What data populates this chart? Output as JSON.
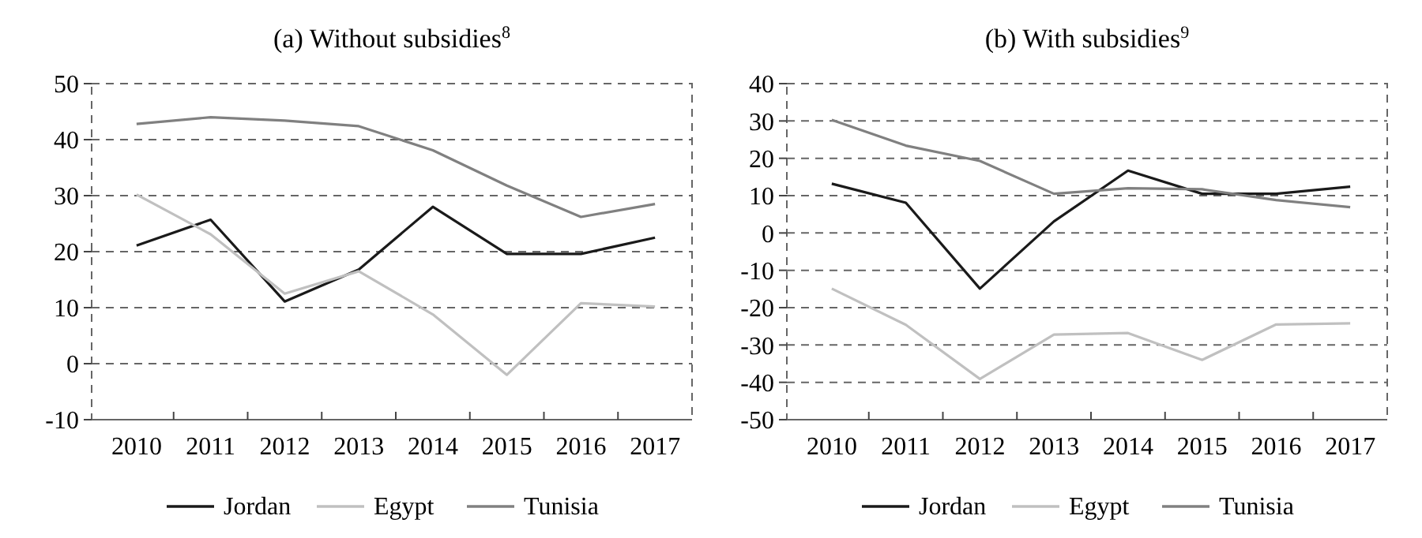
{
  "chart_data": [
    {
      "type": "line",
      "title": "(a) Without subsidies$^{8}$",
      "categories": [
        "2010",
        "2011",
        "2012",
        "2013",
        "2014",
        "2015",
        "2016",
        "2017"
      ],
      "ylim": [
        -10,
        50
      ],
      "yticks": [
        -10,
        0,
        10,
        20,
        30,
        40,
        50
      ],
      "grid": "y",
      "legend": "bottom",
      "marker": "none",
      "line_style": "solid",
      "series": [
        {
          "name": "Jordan",
          "color": "#1a1a1a",
          "values": [
            21.1,
            25.7,
            11.1,
            16.8,
            28,
            19.6,
            19.6,
            22.5
          ]
        },
        {
          "name": "Egypt",
          "color": "#c0c0c0",
          "values": [
            30.2,
            23.1,
            12.5,
            16.5,
            8.8,
            -2,
            10.8,
            10.2
          ]
        },
        {
          "name": "Tunisia",
          "color": "#808080",
          "values": [
            42.8,
            44,
            43.4,
            42.4,
            38.1,
            31.8,
            26.2,
            28.5
          ]
        }
      ]
    },
    {
      "type": "line",
      "title": "(b) With subsidies$^{9}$",
      "categories": [
        "2010",
        "2011",
        "2012",
        "2013",
        "2014",
        "2015",
        "2016",
        "2017"
      ],
      "ylim": [
        -50,
        40
      ],
      "yticks": [
        -50,
        -40,
        -30,
        -20,
        -10,
        0,
        10,
        20,
        30,
        40
      ],
      "grid": "y",
      "legend": "bottom",
      "marker": "none",
      "line_style": "solid",
      "series": [
        {
          "name": "Jordan",
          "color": "#1a1a1a",
          "values": [
            13.2,
            8.1,
            -14.9,
            3.1,
            16.7,
            10.5,
            10.5,
            12.4
          ]
        },
        {
          "name": "Egypt",
          "color": "#c0c0c0",
          "values": [
            -14.9,
            -24.6,
            -39.1,
            -27.2,
            -26.8,
            -34,
            -24.5,
            -24.2
          ]
        },
        {
          "name": "Tunisia",
          "color": "#808080",
          "values": [
            30.3,
            23.4,
            19.3,
            10.5,
            12,
            11.7,
            8.8,
            6.9
          ]
        }
      ]
    }
  ]
}
